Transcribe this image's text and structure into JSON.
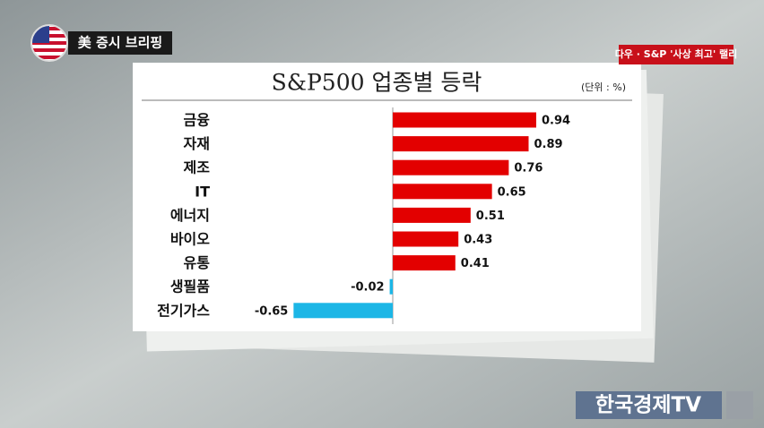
{
  "header": {
    "program": "美 증시 브리핑",
    "headline": "다우 · S&P '사상 최고' 랠리"
  },
  "chart_data": {
    "type": "hbar",
    "title": "S&P500 업종별 등락",
    "unit": "(단위 : %)",
    "categories": [
      "금융",
      "자재",
      "제조",
      "IT",
      "에너지",
      "바이오",
      "유통",
      "생필품",
      "전기가스"
    ],
    "values": [
      0.94,
      0.89,
      0.76,
      0.65,
      0.51,
      0.43,
      0.41,
      -0.02,
      -0.65
    ],
    "color": "#e30000",
    "negative_color": "#1cb6e6"
  },
  "footer": {
    "logo": "한국경제TV"
  }
}
